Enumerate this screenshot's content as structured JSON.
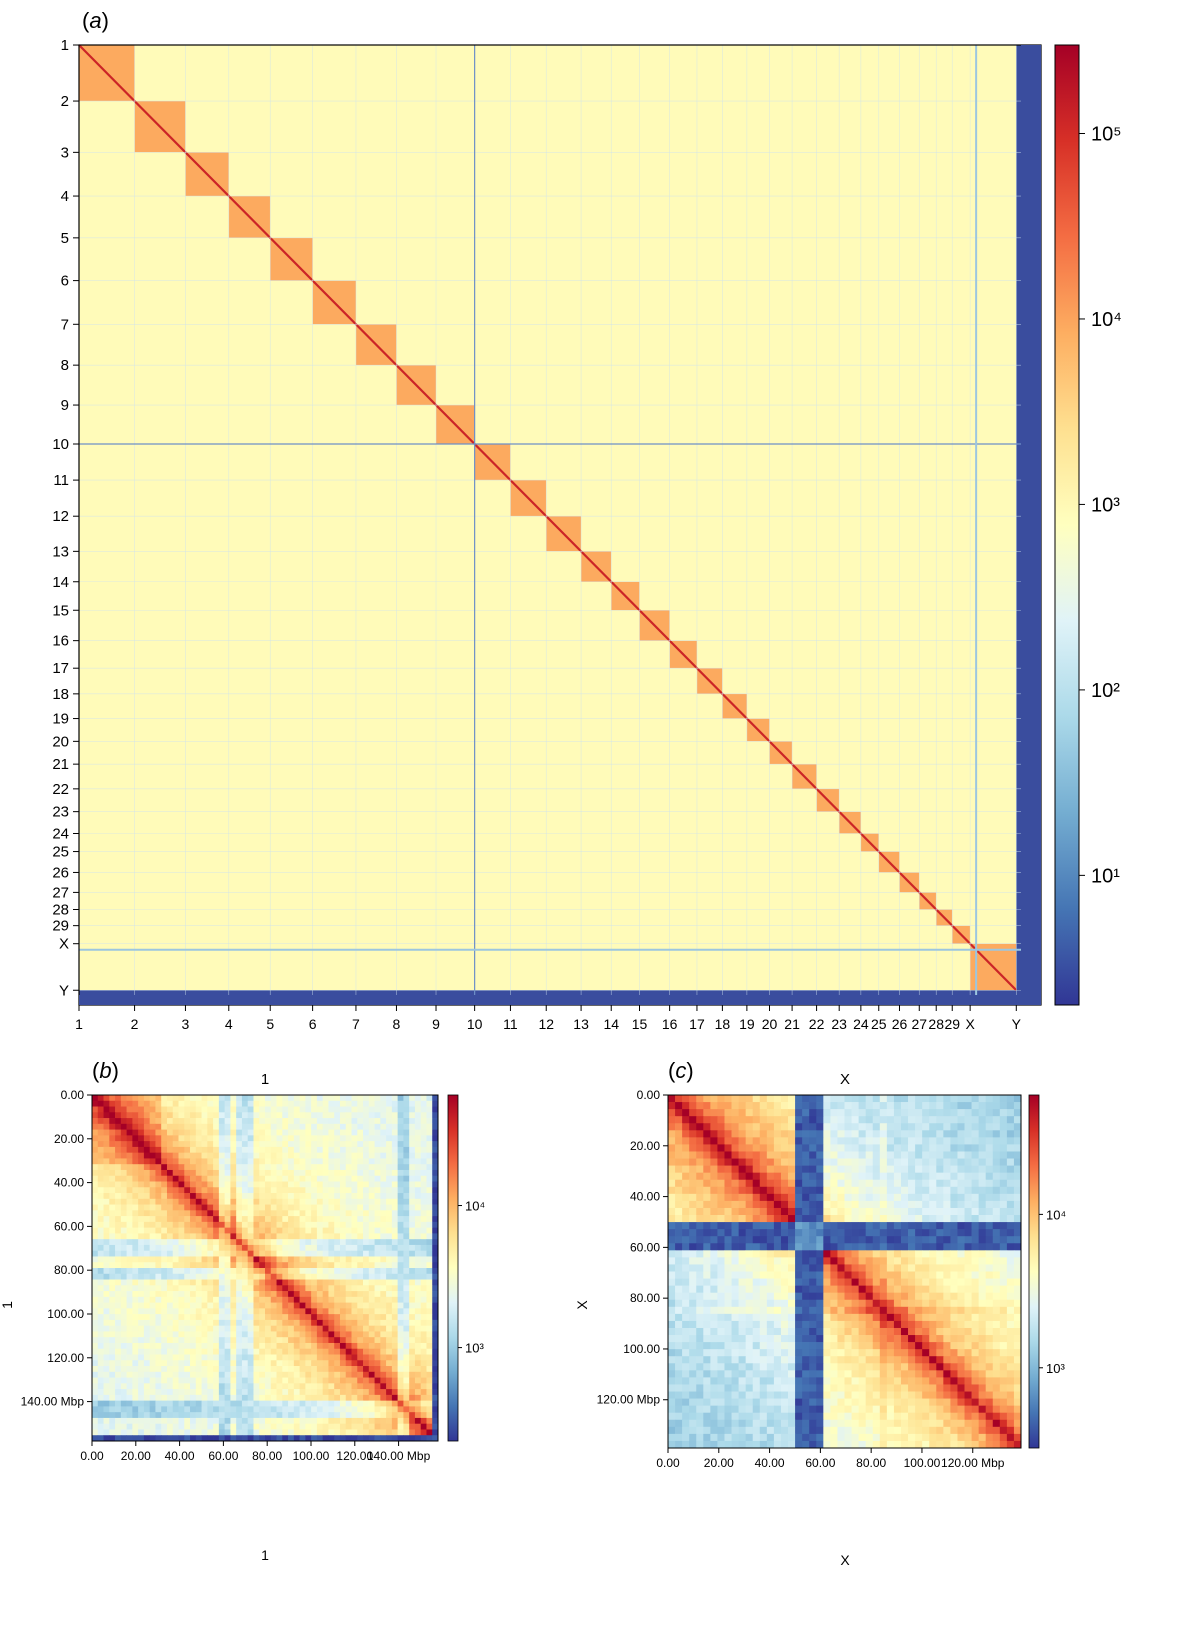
{
  "chart_data": [
    {
      "type": "heatmap",
      "panel_label": "a",
      "chromosomes": [
        "1",
        "2",
        "3",
        "4",
        "5",
        "6",
        "7",
        "8",
        "9",
        "10",
        "11",
        "12",
        "13",
        "14",
        "15",
        "16",
        "17",
        "18",
        "19",
        "20",
        "21",
        "22",
        "23",
        "24",
        "25",
        "26",
        "27",
        "28",
        "29",
        "X",
        "Y"
      ],
      "bin_edges": [
        0,
        59,
        113,
        159,
        203,
        248,
        294,
        337,
        379,
        420,
        458,
        496,
        533,
        565,
        595,
        627,
        656,
        683,
        709,
        733,
        757,
        783,
        807,
        830,
        849,
        871,
        892,
        910,
        927,
        946,
        995,
        1000
      ],
      "colorbar": {
        "scale": "log",
        "min": 2,
        "max": 300000,
        "tick_labels": [
          "10¹",
          "10²",
          "10³",
          "10⁴",
          "10⁵"
        ]
      },
      "cmap": [
        "#313695",
        "#4575b4",
        "#74add1",
        "#abd9e9",
        "#e0f3f8",
        "#ffffbf",
        "#fee090",
        "#fdae61",
        "#f46d43",
        "#d73027",
        "#a50026"
      ]
    },
    {
      "type": "heatmap",
      "panel_label": "b",
      "title": "1",
      "xlabel": "1",
      "ylabel": "1",
      "axis_range_mbp": [
        0,
        158
      ],
      "tick_labels": [
        "0.00",
        "20.00",
        "40.00",
        "60.00",
        "80.00",
        "100.00",
        "120.00",
        "140.00 Mbp"
      ],
      "colorbar": {
        "scale": "log",
        "min": 220,
        "max": 60000,
        "tick_labels": [
          "10³",
          "10⁴"
        ]
      }
    },
    {
      "type": "heatmap",
      "panel_label": "c",
      "title": "X",
      "xlabel": "X",
      "ylabel": "X",
      "axis_range_mbp": [
        0,
        139
      ],
      "tick_labels": [
        "0.00",
        "20.00",
        "40.00",
        "60.00",
        "80.00",
        "100.00",
        "120.00 Mbp"
      ],
      "colorbar": {
        "scale": "log",
        "min": 300,
        "max": 60000,
        "tick_labels": [
          "10³",
          "10⁴"
        ]
      }
    }
  ]
}
